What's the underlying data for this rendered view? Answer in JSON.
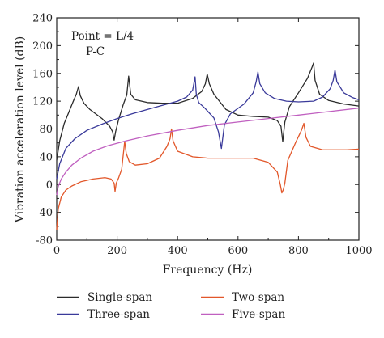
{
  "chart_data": {
    "type": "line",
    "title": "",
    "xlabel": "Frequency (Hz)",
    "ylabel": "Vibration acceleration level (dB)",
    "xlim": [
      0,
      1000
    ],
    "ylim": [
      -80,
      240
    ],
    "xticks": [
      0,
      200,
      400,
      600,
      800,
      1000
    ],
    "yticks": [
      -80,
      -40,
      0,
      40,
      80,
      120,
      160,
      200,
      240
    ],
    "grid": false,
    "legend_placement": "bottom",
    "annotations": [
      "Point = L/4",
      "P-C"
    ],
    "series": [
      {
        "name": "Single-span",
        "color": "#2b2b2b",
        "x": [
          0,
          10,
          25,
          40,
          55,
          65,
          72,
          78,
          90,
          110,
          150,
          175,
          185,
          190,
          195,
          205,
          220,
          232,
          238,
          245,
          260,
          300,
          350,
          400,
          450,
          480,
          492,
          498,
          505,
          520,
          560,
          600,
          650,
          700,
          730,
          742,
          748,
          755,
          770,
          800,
          830,
          845,
          850,
          855,
          870,
          900,
          950,
          1000
        ],
        "y": [
          35,
          63,
          88,
          104,
          120,
          130,
          141,
          128,
          117,
          108,
          95,
          84,
          76,
          64,
          76,
          94,
          115,
          129,
          156,
          130,
          122,
          118,
          117,
          117,
          124,
          134,
          145,
          159,
          145,
          130,
          108,
          100,
          98,
          97,
          92,
          84,
          62,
          90,
          112,
          132,
          153,
          169,
          175,
          150,
          130,
          121,
          116,
          113
        ]
      },
      {
        "name": "Two-span",
        "color": "#e2572a",
        "x": [
          0,
          5,
          15,
          30,
          50,
          80,
          120,
          160,
          180,
          190,
          193,
          197,
          205,
          215,
          225,
          230,
          240,
          260,
          300,
          340,
          365,
          375,
          380,
          385,
          400,
          450,
          500,
          550,
          600,
          650,
          700,
          730,
          740,
          745,
          750,
          755,
          765,
          790,
          810,
          818,
          825,
          840,
          880,
          920,
          960,
          1000
        ],
        "y": [
          -65,
          -35,
          -18,
          -8,
          -2,
          4,
          8,
          10,
          8,
          2,
          -10,
          2,
          10,
          22,
          62,
          45,
          33,
          28,
          30,
          38,
          55,
          66,
          80,
          63,
          48,
          40,
          38,
          38,
          38,
          38,
          32,
          18,
          0,
          -12,
          -7,
          2,
          35,
          60,
          78,
          88,
          68,
          55,
          50,
          50,
          50,
          51
        ]
      },
      {
        "name": "Three-span",
        "color": "#3a3a9a",
        "x": [
          0,
          10,
          30,
          60,
          100,
          150,
          200,
          250,
          300,
          350,
          400,
          430,
          450,
          458,
          462,
          470,
          490,
          520,
          535,
          545,
          555,
          575,
          620,
          650,
          660,
          666,
          672,
          690,
          720,
          760,
          800,
          850,
          880,
          905,
          915,
          921,
          927,
          950,
          980,
          1000
        ],
        "y": [
          8,
          30,
          52,
          66,
          78,
          87,
          95,
          102,
          108,
          114,
          120,
          126,
          136,
          155,
          130,
          118,
          110,
          96,
          76,
          52,
          86,
          102,
          116,
          132,
          148,
          162,
          145,
          132,
          124,
          120,
          119,
          120,
          126,
          138,
          150,
          165,
          148,
          132,
          125,
          122
        ]
      },
      {
        "name": "Five-span",
        "color": "#c060c0",
        "x": [
          0,
          5,
          15,
          30,
          50,
          80,
          120,
          170,
          230,
          300,
          400,
          500,
          600,
          700,
          800,
          900,
          1000
        ],
        "y": [
          -15,
          -3,
          8,
          18,
          28,
          38,
          48,
          56,
          63,
          70,
          78,
          85,
          90,
          95,
          100,
          105,
          110
        ]
      }
    ]
  }
}
